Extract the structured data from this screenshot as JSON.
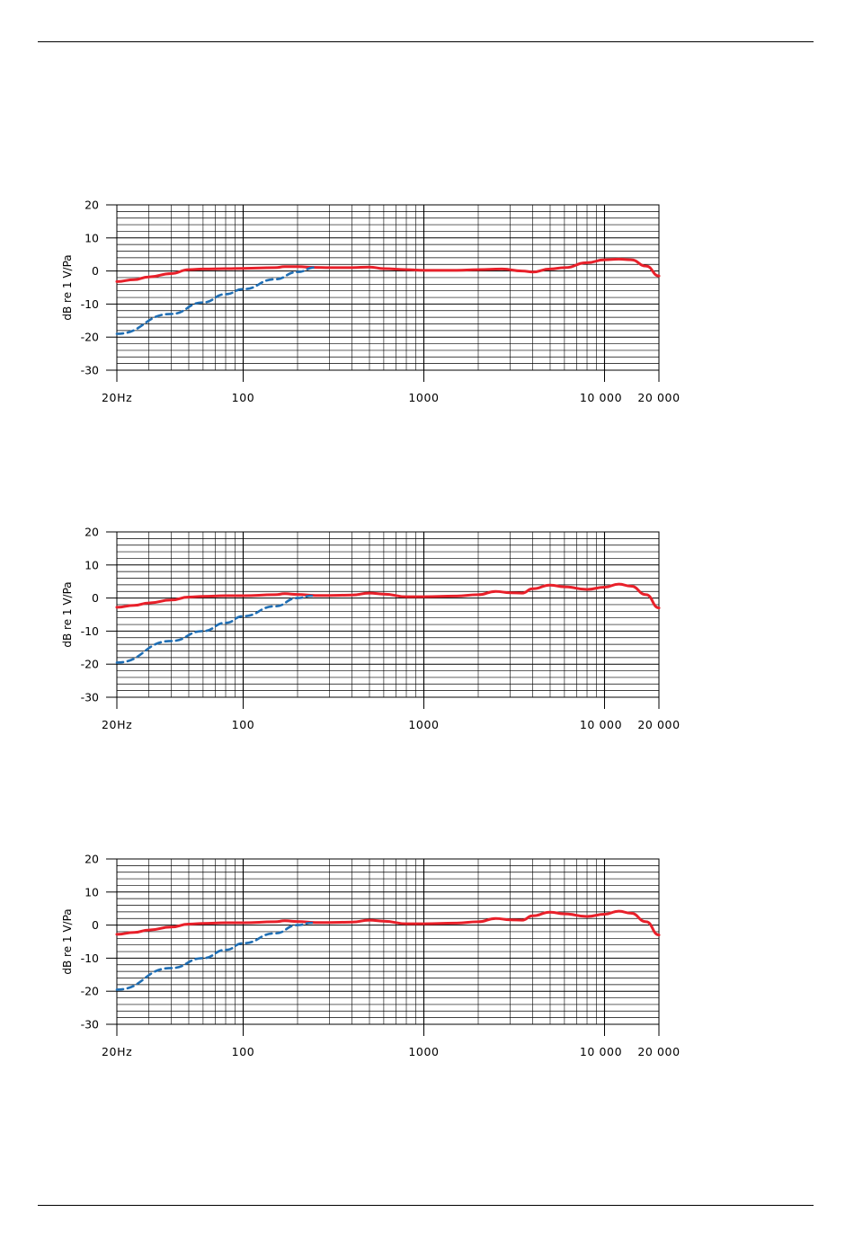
{
  "page": {
    "colors": {
      "response": "#e8202a",
      "rolloff": "#1f6eb4",
      "grid": "#000000"
    }
  },
  "chart_data": [
    {
      "type": "line",
      "x_scale": "log",
      "xlim": [
        20,
        20000
      ],
      "ylim": [
        -30,
        20
      ],
      "ylabel": "dB re 1 V/Pa",
      "xlabel": "",
      "x_tick_labels": [
        "20Hz",
        "100",
        "1000",
        "10 000",
        "20 000"
      ],
      "x_tick_values": [
        20,
        100,
        1000,
        10000,
        20000
      ],
      "y_tick_labels": [
        "20",
        "10",
        "0",
        "-10",
        "-20",
        "-30"
      ],
      "y_tick_values": [
        20,
        10,
        0,
        -10,
        -20,
        -30
      ],
      "grid": true,
      "series": [
        {
          "style": "solid",
          "color": "#e8202a",
          "x": [
            20,
            25,
            30,
            40,
            50,
            60,
            80,
            100,
            150,
            170,
            200,
            250,
            300,
            400,
            500,
            600,
            800,
            1000,
            1500,
            2000,
            2700,
            3500,
            4000,
            5000,
            6000,
            8000,
            10000,
            12000,
            14000,
            17000,
            20000
          ],
          "y": [
            -3.2,
            -2.6,
            -1.8,
            -0.8,
            0.4,
            0.6,
            0.7,
            0.8,
            1.0,
            1.3,
            1.3,
            1.1,
            1.0,
            1.0,
            1.2,
            0.7,
            0.4,
            0.2,
            0.2,
            0.4,
            0.6,
            0.0,
            -0.3,
            0.6,
            1.0,
            2.5,
            3.4,
            3.6,
            3.4,
            1.5,
            -1.5
          ]
        },
        {
          "style": "dashed",
          "color": "#1f6eb4",
          "x": [
            20,
            40,
            60,
            80,
            100,
            150,
            200,
            250
          ],
          "y": [
            -19,
            -13,
            -9.5,
            -7,
            -5.5,
            -2.5,
            -0.3,
            1.1
          ]
        }
      ]
    },
    {
      "type": "line",
      "x_scale": "log",
      "xlim": [
        20,
        20000
      ],
      "ylim": [
        -30,
        20
      ],
      "ylabel": "dB re 1 V/Pa",
      "xlabel": "",
      "x_tick_labels": [
        "20Hz",
        "100",
        "1000",
        "10 000",
        "20 000"
      ],
      "x_tick_values": [
        20,
        100,
        1000,
        10000,
        20000
      ],
      "y_tick_labels": [
        "20",
        "10",
        "0",
        "-10",
        "-20",
        "-30"
      ],
      "y_tick_values": [
        20,
        10,
        0,
        -10,
        -20,
        -30
      ],
      "grid": true,
      "series": [
        {
          "style": "solid",
          "color": "#e8202a",
          "x": [
            20,
            25,
            30,
            40,
            50,
            60,
            80,
            100,
            150,
            170,
            200,
            250,
            300,
            400,
            500,
            600,
            800,
            1000,
            1500,
            2000,
            2500,
            3000,
            3500,
            4000,
            5000,
            6000,
            8000,
            10000,
            12000,
            14000,
            17000,
            20000
          ],
          "y": [
            -2.8,
            -2.2,
            -1.5,
            -0.6,
            0.3,
            0.5,
            0.7,
            0.7,
            1.0,
            1.3,
            1.1,
            0.8,
            0.8,
            0.9,
            1.5,
            1.2,
            0.4,
            0.4,
            0.6,
            1.0,
            2.0,
            1.6,
            1.5,
            2.8,
            3.9,
            3.4,
            2.6,
            3.3,
            4.2,
            3.6,
            1.0,
            -3.0
          ]
        },
        {
          "style": "dashed",
          "color": "#1f6eb4",
          "x": [
            20,
            40,
            60,
            80,
            100,
            150,
            200,
            240
          ],
          "y": [
            -19.5,
            -13,
            -10,
            -7.5,
            -5.5,
            -2.5,
            0.0,
            0.7
          ]
        }
      ]
    },
    {
      "type": "line",
      "x_scale": "log",
      "xlim": [
        20,
        20000
      ],
      "ylim": [
        -30,
        20
      ],
      "ylabel": "dB re 1 V/Pa",
      "xlabel": "",
      "x_tick_labels": [
        "20Hz",
        "100",
        "1000",
        "10 000",
        "20 000"
      ],
      "x_tick_values": [
        20,
        100,
        1000,
        10000,
        20000
      ],
      "y_tick_labels": [
        "20",
        "10",
        "0",
        "-10",
        "-20",
        "-30"
      ],
      "y_tick_values": [
        20,
        10,
        0,
        -10,
        -20,
        -30
      ],
      "grid": true,
      "series": [
        {
          "style": "solid",
          "color": "#e8202a",
          "x": [
            20,
            25,
            30,
            40,
            50,
            60,
            80,
            100,
            150,
            170,
            200,
            250,
            300,
            400,
            500,
            600,
            800,
            1000,
            1500,
            2000,
            2500,
            3000,
            3500,
            4000,
            5000,
            6000,
            8000,
            10000,
            12000,
            14000,
            17000,
            20000
          ],
          "y": [
            -2.8,
            -2.2,
            -1.5,
            -0.6,
            0.3,
            0.5,
            0.7,
            0.7,
            1.0,
            1.3,
            1.1,
            0.8,
            0.8,
            0.9,
            1.5,
            1.2,
            0.4,
            0.4,
            0.6,
            1.0,
            2.0,
            1.6,
            1.5,
            2.8,
            3.9,
            3.4,
            2.6,
            3.3,
            4.2,
            3.6,
            1.0,
            -3.0
          ]
        },
        {
          "style": "dashed",
          "color": "#1f6eb4",
          "x": [
            20,
            40,
            60,
            80,
            100,
            150,
            200,
            240
          ],
          "y": [
            -19.5,
            -13,
            -10,
            -7.5,
            -5.5,
            -2.5,
            0.0,
            0.7
          ]
        }
      ]
    }
  ]
}
